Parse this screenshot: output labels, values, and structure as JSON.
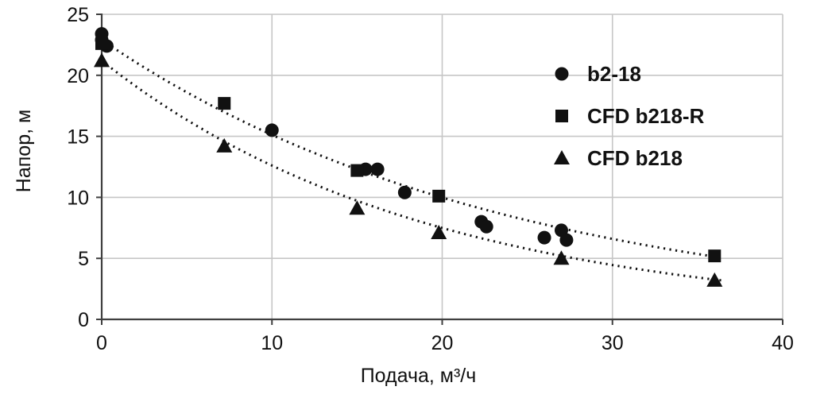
{
  "chart_data": {
    "type": "scatter",
    "title": "",
    "xlabel": "Подача, м³/ч",
    "ylabel": "Напор, м",
    "xlim": [
      0,
      40
    ],
    "ylim": [
      0,
      25
    ],
    "xticks": [
      "0",
      "10",
      "20",
      "30",
      "40"
    ],
    "yticks": [
      "0",
      "5",
      "10",
      "15",
      "20",
      "25"
    ],
    "grid": true,
    "legend_position": "upper-right-inside",
    "colors": {
      "marker": "#111111",
      "trendline": "#111111",
      "grid": "#c6c6c6",
      "axis": "#3f3f3f",
      "text": "#111111",
      "background": "#ffffff"
    },
    "series": [
      {
        "name": "b2-18",
        "marker": "circle",
        "points": [
          [
            0,
            23.4
          ],
          [
            0,
            22.9
          ],
          [
            0.3,
            22.4
          ],
          [
            10,
            15.5
          ],
          [
            15.5,
            12.3
          ],
          [
            16.2,
            12.3
          ],
          [
            17.8,
            10.4
          ],
          [
            22.3,
            8.0
          ],
          [
            22.6,
            7.6
          ],
          [
            26,
            6.7
          ],
          [
            27,
            7.3
          ],
          [
            27.3,
            6.5
          ]
        ]
      },
      {
        "name": "CFD b218-R",
        "marker": "square",
        "points": [
          [
            0,
            22.6
          ],
          [
            7.2,
            17.7
          ],
          [
            15,
            12.2
          ],
          [
            19.8,
            10.1
          ],
          [
            36,
            5.2
          ]
        ]
      },
      {
        "name": "CFD b218",
        "marker": "triangle",
        "points": [
          [
            0,
            21.2
          ],
          [
            7.2,
            14.2
          ],
          [
            15,
            9.1
          ],
          [
            19.8,
            7.1
          ],
          [
            27,
            5.0
          ],
          [
            36,
            3.2
          ]
        ]
      }
    ],
    "trendlines": [
      {
        "for": "b2-18 / CFD b218-R",
        "model": "exponential",
        "a": 22.9,
        "b": -0.0415,
        "x_start": 0,
        "x_end": 36.5
      },
      {
        "for": "CFD b218",
        "model": "exponential",
        "a": 21.2,
        "b": -0.052,
        "x_start": 0,
        "x_end": 36.5
      }
    ]
  }
}
